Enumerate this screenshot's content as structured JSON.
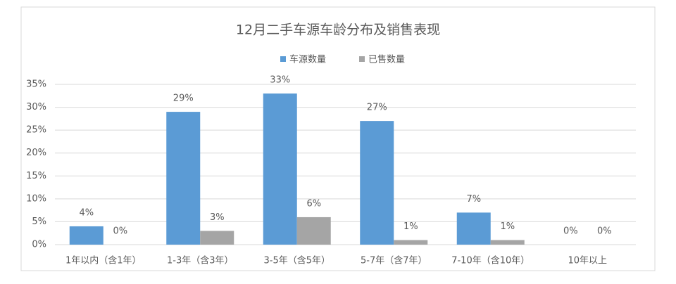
{
  "chart_data": {
    "type": "bar",
    "title": "12月二手车源车龄分布及销售表现",
    "categories": [
      "1年以内（含1年）",
      "1-3年（含3年）",
      "3-5年（含5年）",
      "5-7年（含7年）",
      "7-10年（含10年）",
      "10年以上"
    ],
    "series": [
      {
        "name": "车源数量",
        "color": "#5b9bd5",
        "values": [
          4,
          29,
          33,
          27,
          7,
          0
        ],
        "value_labels": [
          "4%",
          "29%",
          "33%",
          "27%",
          "7%",
          "0%"
        ]
      },
      {
        "name": "已售数量",
        "color": "#a5a5a5",
        "values": [
          0,
          3,
          6,
          1,
          1,
          0
        ],
        "value_labels": [
          "0%",
          "3%",
          "6%",
          "1%",
          "1%",
          "0%"
        ]
      }
    ],
    "ylim": [
      0,
      35
    ],
    "yticks": [
      {
        "value": 0,
        "label": "0%"
      },
      {
        "value": 5,
        "label": "5%"
      },
      {
        "value": 10,
        "label": "10%"
      },
      {
        "value": 15,
        "label": "15%"
      },
      {
        "value": 20,
        "label": "20%"
      },
      {
        "value": 25,
        "label": "25%"
      },
      {
        "value": 30,
        "label": "30%"
      },
      {
        "value": 35,
        "label": "35%"
      }
    ],
    "grid": true,
    "legend": "top"
  }
}
